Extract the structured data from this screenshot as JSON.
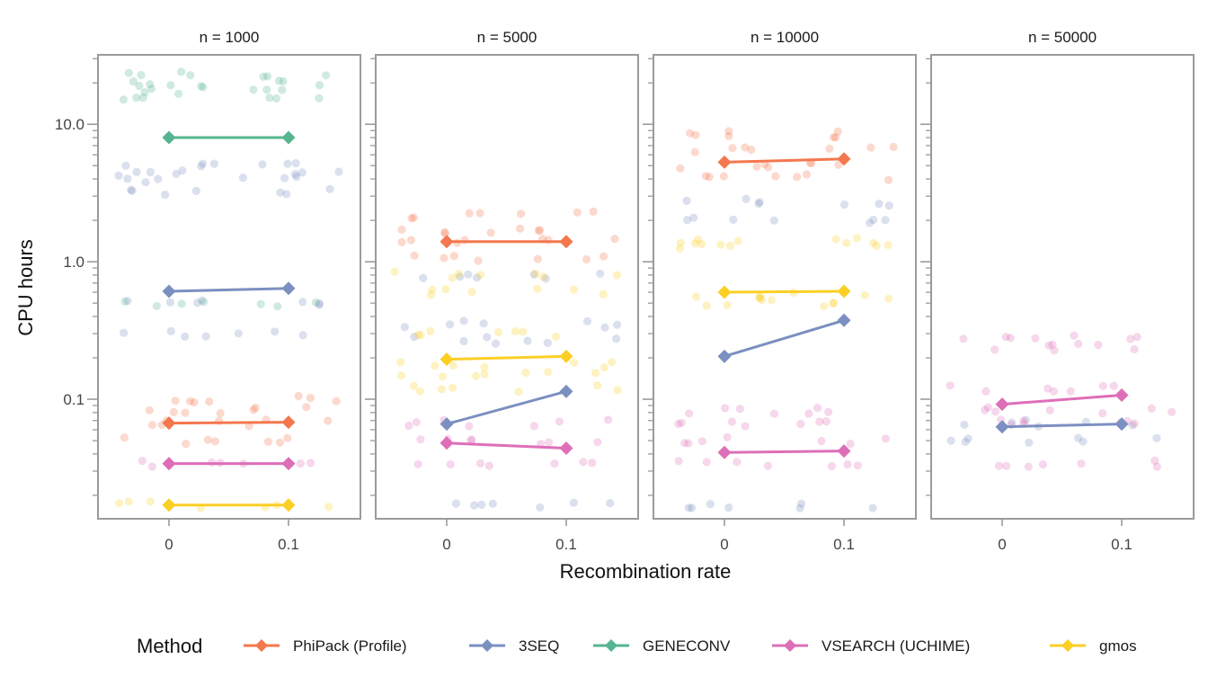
{
  "chart_data": {
    "type": "scatter",
    "ylabel": "CPU hours",
    "xlabel": "Recombination rate",
    "yscale": "log10",
    "ylim": [
      0.0135,
      32
    ],
    "yticks": [
      {
        "value": 0.1,
        "label": "0.1"
      },
      {
        "value": 1,
        "label": "1.0"
      },
      {
        "value": 10,
        "label": "10.0"
      }
    ],
    "x_categories": [
      {
        "value": 0,
        "label": "0"
      },
      {
        "value": 0.1,
        "label": "0.1"
      }
    ],
    "grid": false,
    "legend": {
      "title": "Method",
      "position": "bottom",
      "entries": [
        "PhiPack (Profile)",
        "3SEQ",
        "GENECONV",
        "VSEARCH (UCHIME)",
        "gmos"
      ]
    },
    "series": [
      {
        "name": "PhiPack (Profile)",
        "color": "#f4774e"
      },
      {
        "name": "3SEQ",
        "color": "#7b8fc0"
      },
      {
        "name": "GENECONV",
        "color": "#55b58f"
      },
      {
        "name": "VSEARCH (UCHIME)",
        "color": "#de6eb8"
      },
      {
        "name": "gmos",
        "color": "#fbcf24"
      }
    ],
    "panels": [
      {
        "title": "n = 1000",
        "means": {
          "PhiPack (Profile)": [
            0.067,
            0.068
          ],
          "3SEQ": [
            0.61,
            0.64
          ],
          "GENECONV": [
            8.0,
            8.0
          ],
          "VSEARCH (UCHIME)": [
            0.034,
            0.034
          ],
          "gmos": [
            0.017,
            0.017
          ]
        },
        "points": {
          "PhiPack (Profile)": [
            0.1,
            0.083,
            0.067,
            0.05
          ],
          "3SEQ": [
            4.5,
            4.0,
            3.2,
            5.2,
            0.5,
            0.3
          ],
          "GENECONV": [
            23,
            20,
            18,
            16,
            0.5
          ],
          "VSEARCH (UCHIME)": [
            0.034
          ],
          "gmos": [
            0.017
          ]
        }
      },
      {
        "title": "n = 5000",
        "means": {
          "PhiPack (Profile)": [
            1.4,
            1.4
          ],
          "3SEQ": [
            0.066,
            0.114
          ],
          "VSEARCH (UCHIME)": [
            0.048,
            0.044
          ],
          "gmos": [
            0.195,
            0.205
          ]
        },
        "points": {
          "PhiPack (Profile)": [
            2.2,
            1.7,
            1.4,
            1.05
          ],
          "3SEQ": [
            0.8,
            0.35,
            0.27,
            0.017
          ],
          "VSEARCH (UCHIME)": [
            0.067,
            0.05,
            0.034
          ],
          "gmos": [
            0.8,
            0.6,
            0.3,
            0.18,
            0.15,
            0.12
          ]
        }
      },
      {
        "title": "n = 10000",
        "means": {
          "PhiPack (Profile)": [
            5.3,
            5.6
          ],
          "3SEQ": [
            0.205,
            0.375
          ],
          "VSEARCH (UCHIME)": [
            0.041,
            0.042
          ],
          "gmos": [
            0.6,
            0.61
          ]
        },
        "points": {
          "PhiPack (Profile)": [
            8.5,
            6.6,
            5.0,
            4.1
          ],
          "3SEQ": [
            2.7,
            2.0,
            0.017
          ],
          "VSEARCH (UCHIME)": [
            0.083,
            0.067,
            0.05,
            0.034
          ],
          "gmos": [
            1.4,
            1.3,
            0.57,
            0.5
          ]
        }
      },
      {
        "title": "n = 50000",
        "means": {
          "3SEQ": [
            0.063,
            0.066
          ],
          "VSEARCH (UCHIME)": [
            0.092,
            0.107
          ]
        },
        "points": {
          "3SEQ": [
            0.067,
            0.05
          ],
          "VSEARCH (UCHIME)": [
            0.28,
            0.24,
            0.12,
            0.083,
            0.067,
            0.034
          ]
        }
      }
    ]
  }
}
